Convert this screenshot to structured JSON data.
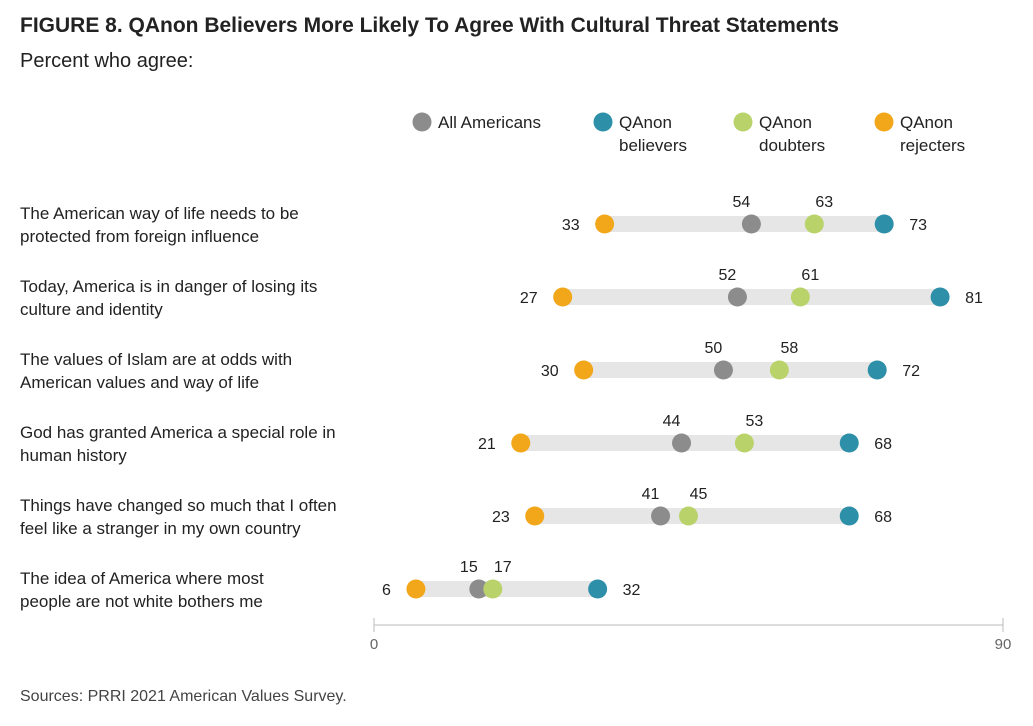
{
  "title": "FIGURE 8.  QAnon Believers More Likely To Agree With Cultural Threat Statements",
  "subtitle": "Percent who agree:",
  "source": "Sources: PRRI 2021 American Values Survey.",
  "colors": {
    "all": "#8c8c8c",
    "believers": "#2e8fa8",
    "doubters": "#b9d36a",
    "rejecters": "#f2a71b",
    "bar": "#e6e6e6"
  },
  "chart_data": {
    "type": "dot",
    "xlim": [
      0,
      90
    ],
    "ticks": [
      "0",
      "90"
    ],
    "legend": [
      {
        "key": "all",
        "lines": [
          "All Americans"
        ]
      },
      {
        "key": "believers",
        "lines": [
          "QAnon",
          "believers"
        ]
      },
      {
        "key": "doubters",
        "lines": [
          "QAnon",
          "doubters"
        ]
      },
      {
        "key": "rejecters",
        "lines": [
          "QAnon",
          "rejecters"
        ]
      }
    ],
    "rows": [
      {
        "label": [
          "The American way of life needs to be",
          "protected from foreign influence"
        ],
        "all": 54,
        "believers": 73,
        "doubters": 63,
        "rejecters": 33
      },
      {
        "label": [
          "Today, America is in danger of losing its",
          "culture and identity"
        ],
        "all": 52,
        "believers": 81,
        "doubters": 61,
        "rejecters": 27
      },
      {
        "label": [
          "The values of Islam are at odds with",
          "American values and way of life"
        ],
        "all": 50,
        "believers": 72,
        "doubters": 58,
        "rejecters": 30
      },
      {
        "label": [
          "God has granted America a special role in",
          "human history"
        ],
        "all": 44,
        "believers": 68,
        "doubters": 53,
        "rejecters": 21
      },
      {
        "label": [
          "Things have changed so much that I often",
          "feel like a stranger in my own country"
        ],
        "all": 41,
        "believers": 68,
        "doubters": 45,
        "rejecters": 23
      },
      {
        "label": [
          "The idea of America where most",
          "people are not white bothers me"
        ],
        "all": 15,
        "believers": 32,
        "doubters": 17,
        "rejecters": 6
      }
    ]
  }
}
